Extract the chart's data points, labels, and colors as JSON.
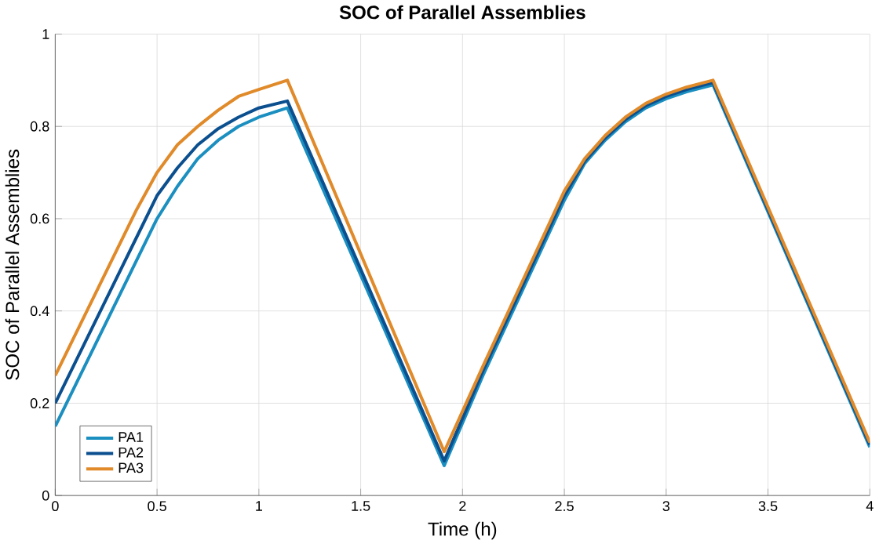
{
  "chart_data": {
    "type": "line",
    "title": "SOC of Parallel Assemblies",
    "xlabel": "Time (h)",
    "ylabel": "SOC of Parallel Assemblies",
    "xlim": [
      0,
      4
    ],
    "ylim": [
      0,
      1
    ],
    "xticks": [
      0,
      0.5,
      1,
      1.5,
      2,
      2.5,
      3,
      3.5,
      4
    ],
    "yticks": [
      0,
      0.2,
      0.4,
      0.6,
      0.8,
      1
    ],
    "grid": true,
    "legend": "bottom left",
    "line_style": "solid",
    "marker": "none",
    "x": [
      0,
      0.1,
      0.2,
      0.3,
      0.4,
      0.5,
      0.6,
      0.7,
      0.8,
      0.9,
      1.0,
      1.14,
      1.91,
      2.1,
      2.3,
      2.5,
      2.6,
      2.7,
      2.8,
      2.9,
      3.0,
      3.1,
      3.23,
      4.0
    ],
    "series": [
      {
        "name": "PA1",
        "color": "#1b8fc0",
        "values": [
          0.15,
          0.24,
          0.33,
          0.42,
          0.51,
          0.6,
          0.67,
          0.73,
          0.77,
          0.8,
          0.82,
          0.84,
          0.065,
          0.26,
          0.45,
          0.64,
          0.72,
          0.77,
          0.81,
          0.84,
          0.86,
          0.875,
          0.89,
          0.105
        ]
      },
      {
        "name": "PA2",
        "color": "#0b4f8f",
        "values": [
          0.2,
          0.29,
          0.38,
          0.47,
          0.56,
          0.65,
          0.71,
          0.76,
          0.795,
          0.82,
          0.84,
          0.855,
          0.075,
          0.27,
          0.46,
          0.65,
          0.725,
          0.775,
          0.815,
          0.845,
          0.865,
          0.88,
          0.895,
          0.11
        ]
      },
      {
        "name": "PA3",
        "color": "#e08a2a",
        "values": [
          0.26,
          0.35,
          0.44,
          0.53,
          0.62,
          0.7,
          0.76,
          0.8,
          0.835,
          0.865,
          0.88,
          0.9,
          0.095,
          0.28,
          0.47,
          0.66,
          0.73,
          0.78,
          0.82,
          0.85,
          0.87,
          0.885,
          0.9,
          0.115
        ]
      }
    ]
  }
}
